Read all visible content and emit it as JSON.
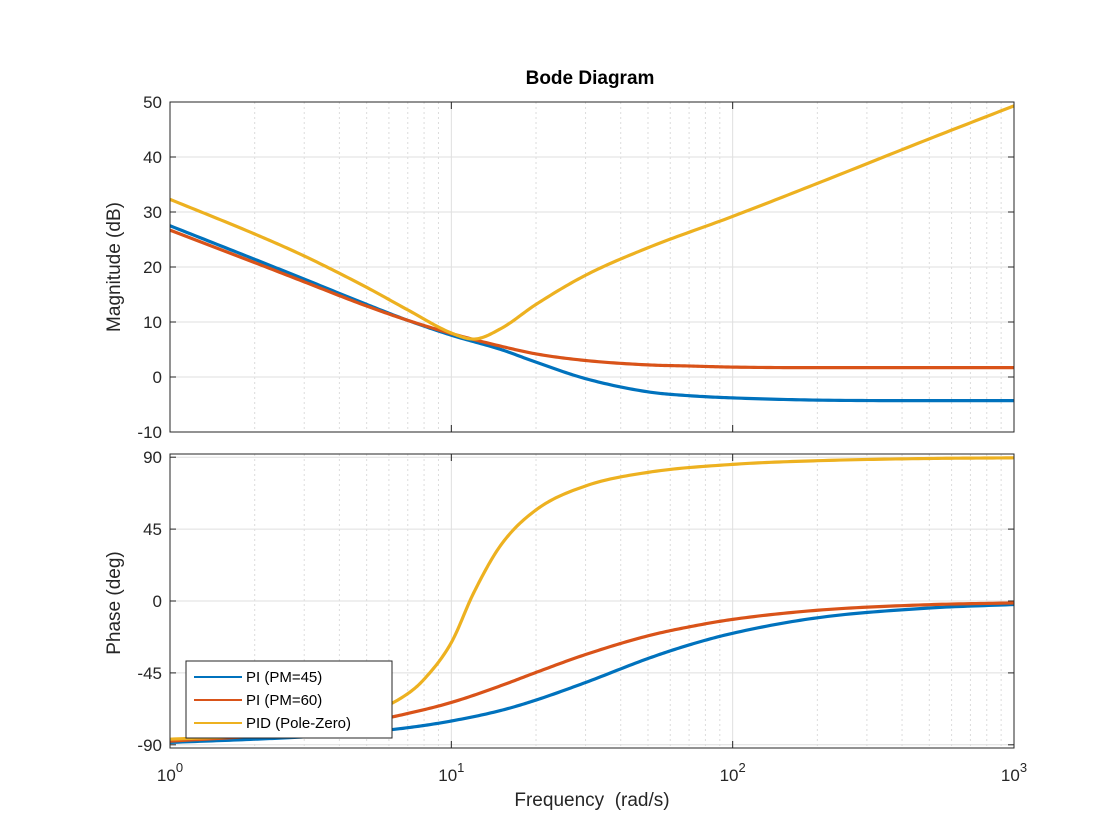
{
  "chart_data": {
    "type": "line",
    "title": "Bode Diagram",
    "xlabel": "Frequency  (rad/s)",
    "xscale": "log",
    "xlim": [
      1,
      1000
    ],
    "grid": true,
    "x_ticks": [
      {
        "value": 1,
        "base": "10",
        "exp": "0"
      },
      {
        "value": 10,
        "base": "10",
        "exp": "1"
      },
      {
        "value": 100,
        "base": "10",
        "exp": "2"
      },
      {
        "value": 1000,
        "base": "10",
        "exp": "3"
      }
    ],
    "legend": {
      "location": "bottom-left"
    },
    "colors": [
      "#0072BD",
      "#D95319",
      "#EDB120"
    ],
    "series_names": [
      "PI (PM=45)",
      "PI (PM=60)",
      "PID (Pole-Zero)"
    ],
    "panels": [
      {
        "name": "magnitude",
        "ylabel": "Magnitude (dB)",
        "ylim": [
          -10,
          50
        ],
        "yticks": [
          "50",
          "40",
          "30",
          "20",
          "10",
          "0",
          "-10"
        ],
        "series": [
          {
            "x": [
              1,
              2,
              3,
              5,
              7,
              10,
              15,
              20,
              30,
              50,
              70,
              100,
              200,
              500,
              1000
            ],
            "y": [
              27.5,
              21.4,
              17.8,
              13.2,
              10.3,
              7.6,
              5.0,
              2.7,
              -0.3,
              -2.7,
              -3.4,
              -3.8,
              -4.2,
              -4.3,
              -4.3
            ]
          },
          {
            "x": [
              1,
              2,
              3,
              5,
              7,
              10,
              15,
              20,
              30,
              50,
              70,
              100,
              200,
              500,
              1000
            ],
            "y": [
              26.7,
              20.8,
              17.3,
              12.9,
              10.3,
              7.9,
              5.6,
              4.2,
              3.0,
              2.2,
              2.0,
              1.8,
              1.7,
              1.7,
              1.7
            ]
          },
          {
            "x": [
              1,
              2,
              3,
              5,
              7,
              10,
              12,
              15,
              20,
              30,
              50,
              100,
              200,
              500,
              1000
            ],
            "y": [
              32.3,
              26.0,
              22.0,
              16.3,
              12.2,
              8.0,
              6.9,
              8.8,
              13.2,
              18.5,
              23.5,
              29.2,
              35.2,
              43.3,
              49.3
            ]
          }
        ]
      },
      {
        "name": "phase",
        "ylabel": "Phase (deg)",
        "ylim": [
          -92,
          92
        ],
        "yticks": [
          "90",
          "45",
          "0",
          "-45",
          "-90"
        ],
        "series": [
          {
            "x": [
              1,
              2,
              3,
              5,
              7,
              10,
              15,
              20,
              30,
              50,
              70,
              100,
              200,
              500,
              1000
            ],
            "y": [
              -88.5,
              -86.5,
              -85.0,
              -82.0,
              -79.3,
              -75.1,
              -68.5,
              -62.0,
              -51.0,
              -36.0,
              -27.5,
              -20.2,
              -10.5,
              -4.4,
              -2.2
            ]
          },
          {
            "x": [
              1,
              2,
              3,
              5,
              7,
              10,
              15,
              20,
              30,
              50,
              70,
              100,
              200,
              500,
              1000
            ],
            "y": [
              -87.7,
              -84.5,
              -81.3,
              -75.7,
              -70.4,
              -63.5,
              -53.0,
              -44.7,
              -33.5,
              -21.8,
              -16.2,
              -11.5,
              -5.8,
              -2.3,
              -1.2
            ]
          },
          {
            "x": [
              1,
              2,
              3,
              5,
              7,
              8,
              10,
              12,
              15,
              20,
              30,
              50,
              100,
              200,
              500,
              1000
            ],
            "y": [
              -86.5,
              -84.0,
              -80.5,
              -71.0,
              -58.0,
              -49.0,
              -26.0,
              5.0,
              35.0,
              57.0,
              72.0,
              80.5,
              85.5,
              87.8,
              89.2,
              89.6
            ]
          }
        ]
      }
    ]
  }
}
